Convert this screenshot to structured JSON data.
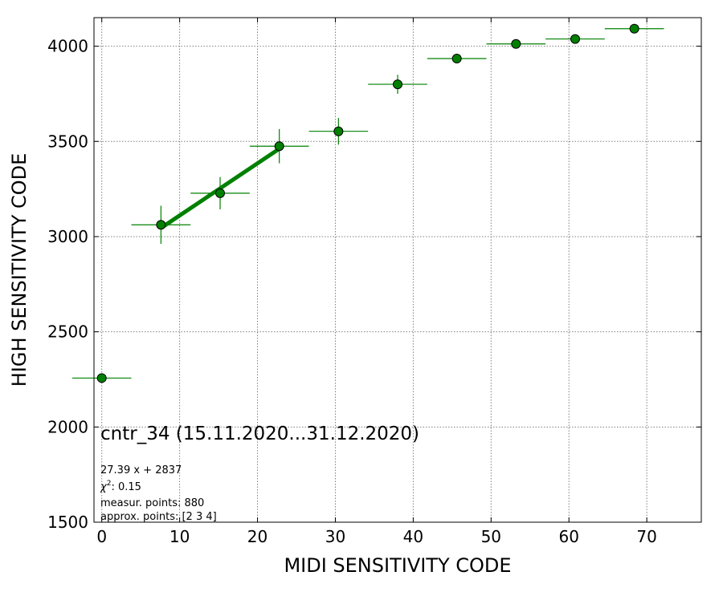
{
  "chart_data": {
    "type": "scatter",
    "xlabel": "MIDI SENSITIVITY CODE",
    "ylabel": "HIGH SENSITIVITY CODE",
    "xlim": [
      -1,
      77
    ],
    "ylim": [
      1500,
      4150
    ],
    "xticks": [
      0,
      10,
      20,
      30,
      40,
      50,
      60,
      70
    ],
    "yticks": [
      1500,
      2000,
      2500,
      3000,
      3500,
      4000
    ],
    "grid": true,
    "colors": {
      "marker": "#008000",
      "errorbar": "#008000",
      "fit": "#008000",
      "edge": "#000000"
    },
    "points": [
      {
        "x": 0,
        "y": 2257,
        "xerr": 3.8,
        "yerr": 0
      },
      {
        "x": 7.6,
        "y": 3062,
        "xerr": 3.8,
        "yerr": 100
      },
      {
        "x": 15.2,
        "y": 3228,
        "xerr": 3.8,
        "yerr": 85
      },
      {
        "x": 22.8,
        "y": 3475,
        "xerr": 3.8,
        "yerr": 90
      },
      {
        "x": 30.4,
        "y": 3553,
        "xerr": 3.8,
        "yerr": 70
      },
      {
        "x": 38.0,
        "y": 3800,
        "xerr": 3.8,
        "yerr": 50
      },
      {
        "x": 45.6,
        "y": 3935,
        "xerr": 3.8,
        "yerr": 25
      },
      {
        "x": 53.2,
        "y": 4012,
        "xerr": 3.8,
        "yerr": 12
      },
      {
        "x": 60.8,
        "y": 4038,
        "xerr": 3.8,
        "yerr": 10
      },
      {
        "x": 68.4,
        "y": 4092,
        "xerr": 3.8,
        "yerr": 8
      }
    ],
    "fit": {
      "slope": 27.39,
      "intercept": 2837,
      "x_from": 7.6,
      "x_to": 22.8
    },
    "annotation": {
      "title": "cntr_34 (15.11.2020...31.12.2020)",
      "equation": "27.39 x + 2837",
      "chi2_label": "χ",
      "chi2_exp": "2",
      "chi2_value": ": 0.15",
      "measur_points": "measur. points: 880",
      "approx_points": "approx. points: [2 3 4]"
    }
  }
}
